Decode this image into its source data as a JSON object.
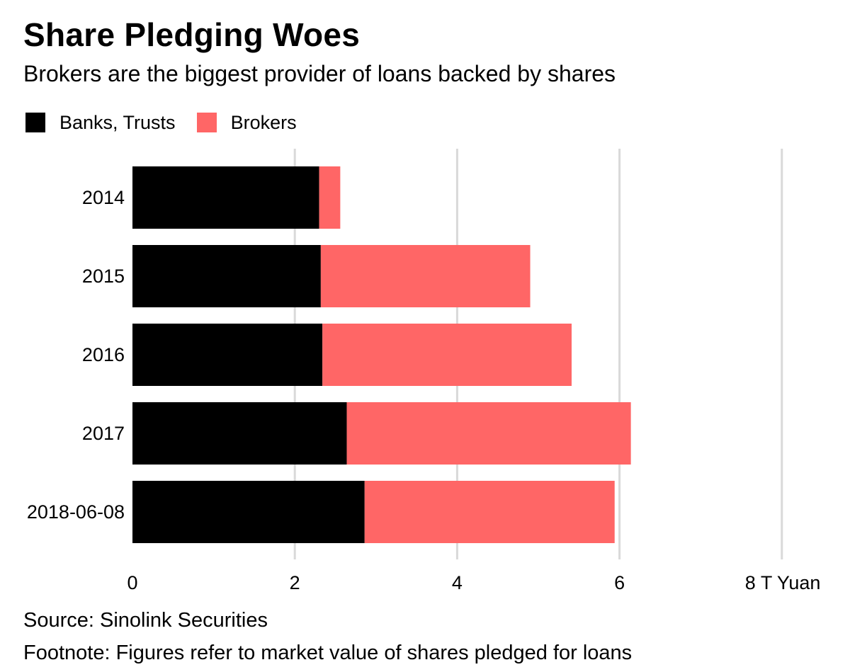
{
  "chart_data": {
    "type": "bar",
    "orientation": "horizontal",
    "stacked": true,
    "title": "Share Pledging Woes",
    "subtitle": "Brokers are the biggest provider of loans backed by shares",
    "categories": [
      "2014",
      "2015",
      "2016",
      "2017",
      "2018-06-08"
    ],
    "series": [
      {
        "name": "Banks, Trusts",
        "color": "#000000",
        "values": [
          2.3,
          2.32,
          2.34,
          2.64,
          2.86
        ]
      },
      {
        "name": "Brokers",
        "color": "#ff6666",
        "values": [
          0.26,
          2.58,
          3.07,
          3.5,
          3.08
        ]
      }
    ],
    "xticks": [
      "0",
      "2",
      "4",
      "6",
      "8 T Yuan"
    ],
    "xlim": [
      0,
      8
    ],
    "grid": true,
    "legend_position": "top-left"
  },
  "source": "Source: Sinolink Securities",
  "footnote": "Footnote: Figures refer to market value of shares pledged for loans"
}
